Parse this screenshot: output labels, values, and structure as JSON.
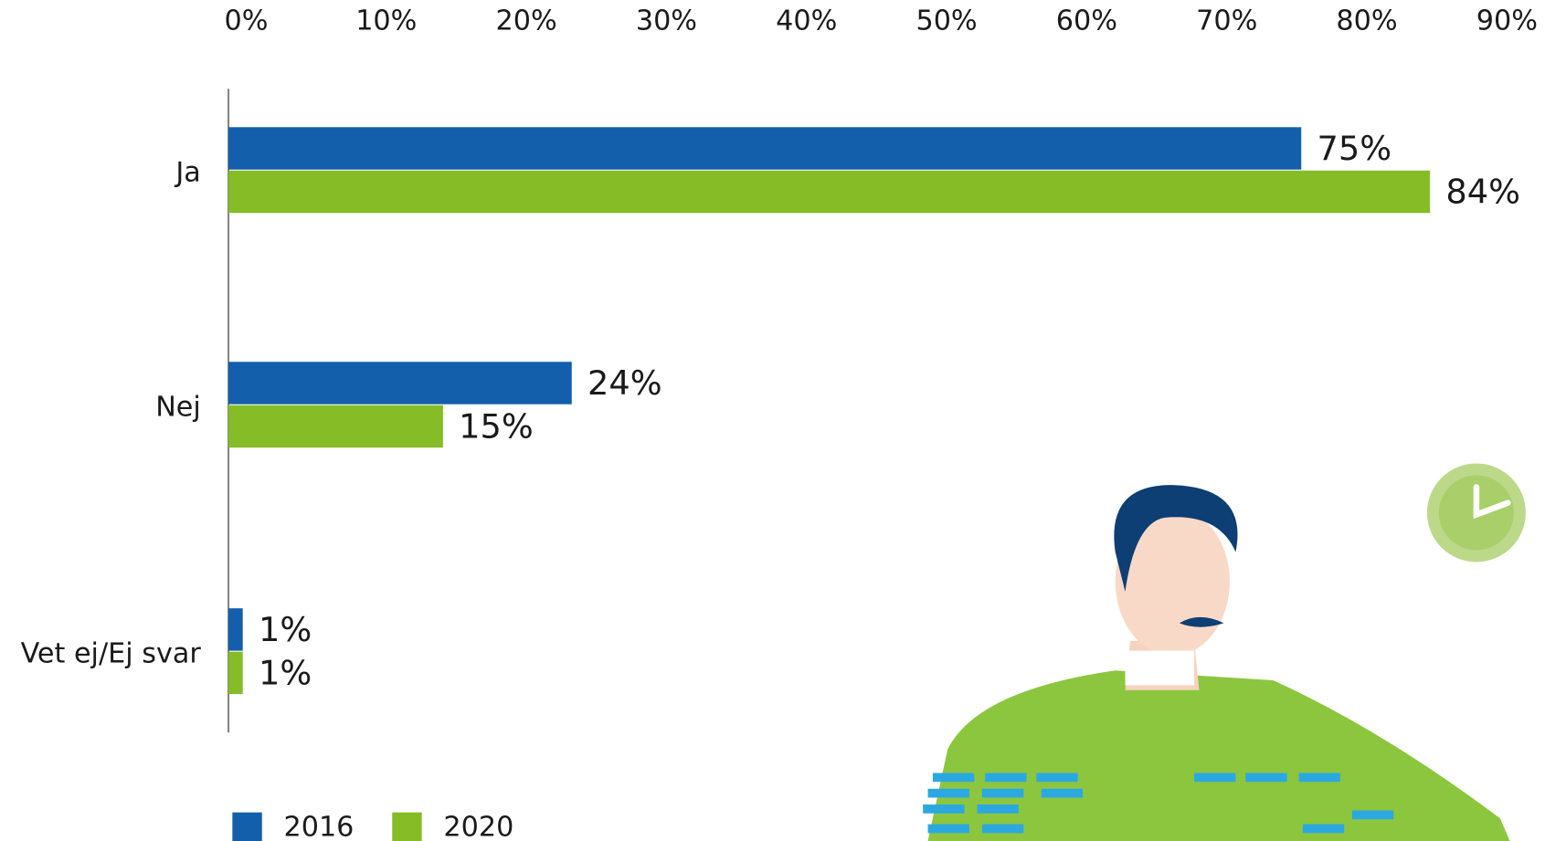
{
  "chart_data": {
    "type": "bar",
    "orientation": "horizontal",
    "categories": [
      "Ja",
      "Nej",
      "Vet ej/Ej svar"
    ],
    "series": [
      {
        "name": "2016",
        "color": "#135fab",
        "values": [
          75,
          24,
          1
        ],
        "value_labels": [
          "75%",
          "24%",
          "1%"
        ]
      },
      {
        "name": "2020",
        "color": "#86bc25",
        "values": [
          84,
          15,
          1
        ],
        "value_labels": [
          "84%",
          "15%",
          "1%"
        ]
      }
    ],
    "xlim": [
      0,
      90
    ],
    "xticks": [
      {
        "value": 0,
        "label": "0%"
      },
      {
        "value": 10,
        "label": "10%"
      },
      {
        "value": 20,
        "label": "20%"
      },
      {
        "value": 30,
        "label": "30%"
      },
      {
        "value": 40,
        "label": "40%"
      },
      {
        "value": 50,
        "label": "50%"
      },
      {
        "value": 60,
        "label": "60%"
      },
      {
        "value": 70,
        "label": "70%"
      },
      {
        "value": 80,
        "label": "80%"
      },
      {
        "value": 90,
        "label": "90%"
      }
    ],
    "grid": false,
    "legend": "bottom-left"
  }
}
